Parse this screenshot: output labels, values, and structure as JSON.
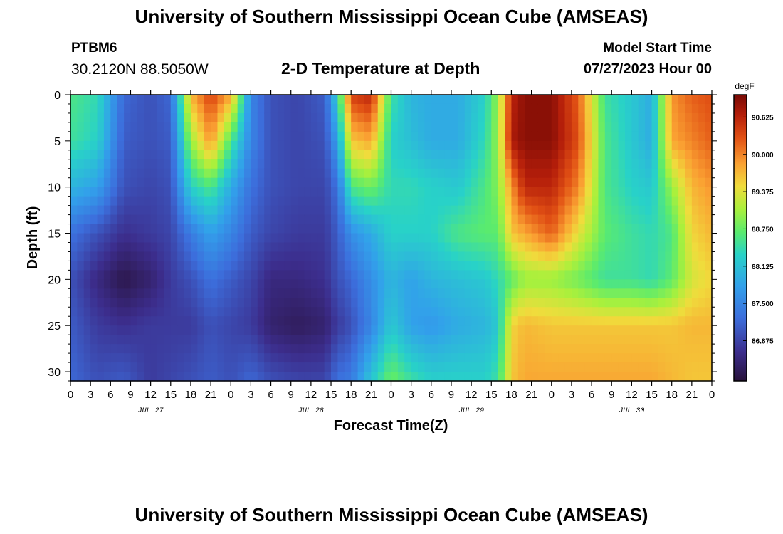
{
  "header": {
    "title": "University of Southern Mississippi Ocean Cube (AMSEAS)",
    "station": "PTBM6",
    "coordinates": "30.2120N  88.5050W",
    "subtitle": "2-D Temperature at Depth",
    "model_start_label": "Model Start Time",
    "model_start_value": "07/27/2023 Hour 00"
  },
  "footer": {
    "title": "University of Southern Mississippi Ocean Cube (AMSEAS)"
  },
  "chart_data": {
    "type": "heatmap",
    "title": "2-D Temperature at Depth",
    "xlabel": "Forecast Time(Z)",
    "ylabel": "Depth (ft)",
    "x_range_hours": [
      0,
      96
    ],
    "x_tick_labels": [
      "0",
      "3",
      "6",
      "9",
      "12",
      "15",
      "18",
      "21",
      "0",
      "3",
      "6",
      "9",
      "12",
      "15",
      "18",
      "21",
      "0",
      "3",
      "6",
      "9",
      "12",
      "15",
      "18",
      "21",
      "0",
      "3",
      "6",
      "9",
      "12",
      "15",
      "18",
      "21",
      "0"
    ],
    "date_labels": [
      {
        "label": "JUL 27",
        "hour": 12
      },
      {
        "label": "JUL 28",
        "hour": 36
      },
      {
        "label": "JUL 29",
        "hour": 60
      },
      {
        "label": "JUL 30",
        "hour": 84
      }
    ],
    "y_range": [
      0,
      31
    ],
    "y_ticks": [
      0,
      5,
      10,
      15,
      20,
      25,
      30
    ],
    "y_inverted": true,
    "colorbar": {
      "unit": "degF",
      "range": [
        86.2,
        91.0
      ],
      "ticks": [
        "90.625",
        "90.000",
        "89.375",
        "88.750",
        "88.125",
        "87.500",
        "86.875"
      ]
    },
    "profile_depths": [
      0,
      5,
      10,
      15,
      20,
      25,
      31
    ],
    "profiles": [
      {
        "hour": 0,
        "values": [
          88.6,
          88.5,
          88.0,
          87.3,
          87.0,
          87.1,
          87.2
        ]
      },
      {
        "hour": 4,
        "values": [
          88.4,
          88.3,
          87.8,
          87.0,
          86.6,
          86.8,
          87.0
        ]
      },
      {
        "hour": 8,
        "values": [
          87.2,
          87.1,
          87.0,
          86.7,
          86.3,
          86.7,
          87.1
        ]
      },
      {
        "hour": 12,
        "values": [
          87.0,
          87.0,
          86.9,
          86.8,
          86.5,
          86.8,
          86.8
        ]
      },
      {
        "hour": 15,
        "values": [
          87.2,
          87.1,
          87.0,
          86.9,
          86.8,
          86.8,
          86.9
        ]
      },
      {
        "hour": 18,
        "values": [
          89.7,
          89.0,
          88.3,
          87.4,
          87.0,
          86.8,
          87.0
        ]
      },
      {
        "hour": 21,
        "values": [
          90.4,
          89.9,
          88.6,
          87.8,
          87.3,
          87.0,
          87.1
        ]
      },
      {
        "hour": 24,
        "values": [
          89.8,
          88.6,
          87.9,
          87.5,
          87.1,
          86.9,
          87.0
        ]
      },
      {
        "hour": 27,
        "values": [
          87.5,
          87.5,
          87.3,
          87.1,
          86.9,
          86.8,
          87.2
        ]
      },
      {
        "hour": 30,
        "values": [
          87.0,
          87.0,
          87.0,
          86.9,
          86.6,
          86.5,
          87.0
        ]
      },
      {
        "hour": 34,
        "values": [
          86.9,
          86.9,
          86.9,
          86.8,
          86.6,
          86.4,
          86.9
        ]
      },
      {
        "hour": 38,
        "values": [
          87.1,
          87.0,
          86.9,
          86.8,
          86.7,
          86.5,
          86.9
        ]
      },
      {
        "hour": 40,
        "values": [
          88.3,
          87.8,
          87.3,
          87.1,
          87.0,
          86.8,
          87.3
        ]
      },
      {
        "hour": 42,
        "values": [
          90.4,
          89.6,
          88.6,
          87.6,
          87.2,
          87.0,
          87.4
        ]
      },
      {
        "hour": 45,
        "values": [
          90.6,
          89.8,
          88.8,
          87.9,
          87.6,
          87.5,
          88.2
        ]
      },
      {
        "hour": 48,
        "values": [
          88.5,
          88.3,
          88.4,
          88.3,
          88.0,
          88.2,
          88.8
        ]
      },
      {
        "hour": 51,
        "values": [
          88.0,
          88.1,
          88.4,
          88.3,
          87.8,
          87.8,
          88.5
        ]
      },
      {
        "hour": 54,
        "values": [
          87.9,
          87.9,
          88.3,
          88.3,
          88.0,
          87.7,
          88.3
        ]
      },
      {
        "hour": 58,
        "values": [
          87.9,
          87.9,
          88.2,
          88.6,
          88.1,
          87.9,
          88.3
        ]
      },
      {
        "hour": 62,
        "values": [
          88.3,
          88.4,
          88.6,
          88.7,
          88.2,
          88.0,
          88.3
        ]
      },
      {
        "hour": 64,
        "values": [
          89.0,
          89.0,
          88.9,
          88.7,
          88.4,
          88.2,
          88.5
        ]
      },
      {
        "hour": 66,
        "values": [
          90.6,
          90.7,
          89.9,
          89.6,
          88.7,
          89.5,
          89.6
        ]
      },
      {
        "hour": 68,
        "values": [
          90.9,
          90.9,
          90.6,
          89.8,
          89.0,
          89.7,
          89.8
        ]
      },
      {
        "hour": 72,
        "values": [
          90.9,
          90.9,
          90.6,
          90.2,
          89.0,
          89.6,
          89.8
        ]
      },
      {
        "hour": 76,
        "values": [
          90.2,
          90.3,
          90.0,
          89.4,
          88.8,
          89.6,
          89.8
        ]
      },
      {
        "hour": 80,
        "values": [
          88.5,
          88.6,
          88.6,
          88.7,
          88.5,
          89.6,
          89.8
        ]
      },
      {
        "hour": 84,
        "values": [
          88.2,
          88.2,
          88.3,
          88.5,
          88.5,
          89.6,
          89.8
        ]
      },
      {
        "hour": 87,
        "values": [
          87.9,
          87.9,
          88.2,
          88.4,
          88.4,
          89.6,
          89.8
        ]
      },
      {
        "hour": 90,
        "values": [
          89.9,
          89.8,
          89.0,
          88.6,
          88.7,
          89.6,
          89.7
        ]
      },
      {
        "hour": 93,
        "values": [
          90.2,
          90.0,
          89.7,
          89.5,
          89.3,
          89.7,
          89.6
        ]
      },
      {
        "hour": 96,
        "values": [
          90.3,
          90.2,
          89.9,
          89.7,
          89.5,
          89.7,
          89.6
        ]
      }
    ]
  }
}
